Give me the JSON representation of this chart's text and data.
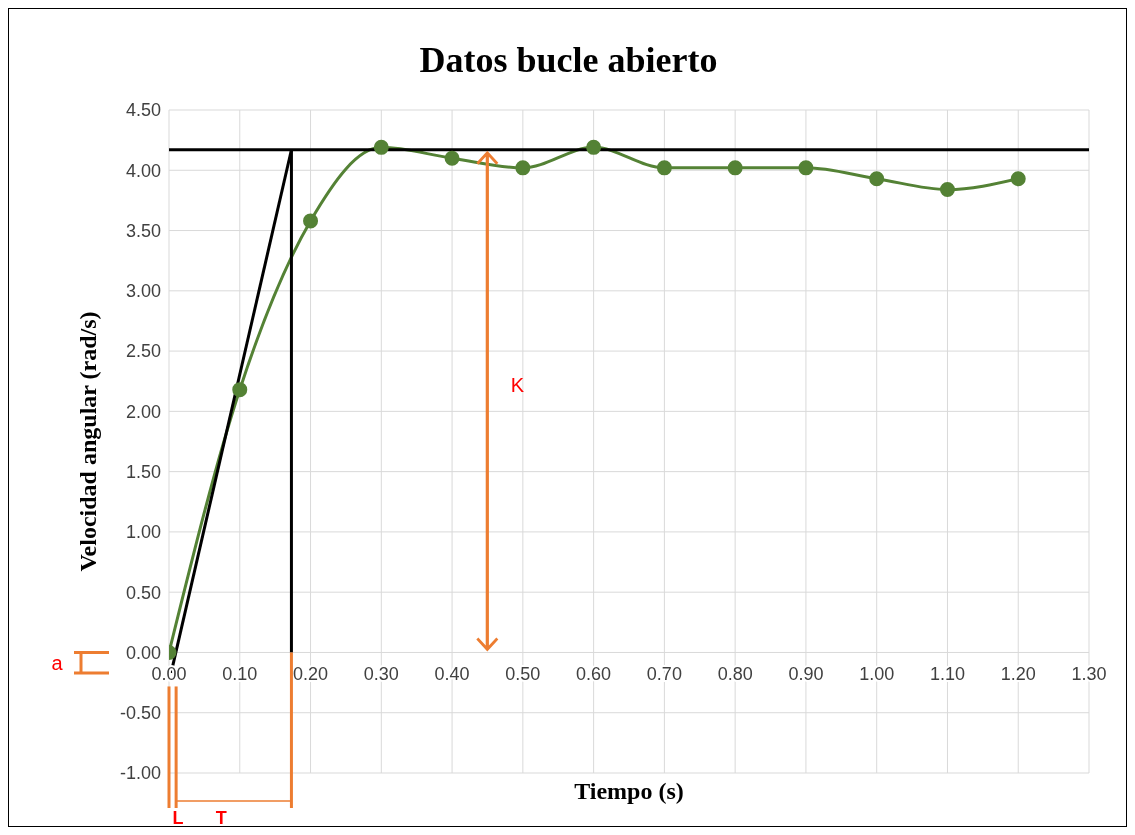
{
  "chart_data": {
    "type": "line",
    "title": "Datos bucle abierto",
    "xlabel": "Tiempo (s)",
    "ylabel": "Velocidad angular (rad/s)",
    "xlim": [
      0,
      1.3
    ],
    "xticks": [
      {
        "value": 0,
        "label": "0.00"
      },
      {
        "value": 0.1,
        "label": "0.10"
      },
      {
        "value": 0.2,
        "label": "0.20"
      },
      {
        "value": 0.3,
        "label": "0.30"
      },
      {
        "value": 0.4,
        "label": "0.40"
      },
      {
        "value": 0.5,
        "label": "0.50"
      },
      {
        "value": 0.6,
        "label": "0.60"
      },
      {
        "value": 0.7,
        "label": "0.70"
      },
      {
        "value": 0.8,
        "label": "0.80"
      },
      {
        "value": 0.9,
        "label": "0.90"
      },
      {
        "value": 1.0,
        "label": "1.00"
      },
      {
        "value": 1.1,
        "label": "1.10"
      },
      {
        "value": 1.2,
        "label": "1.20"
      },
      {
        "value": 1.3,
        "label": "1.30"
      }
    ],
    "ylim": [
      -1,
      4.5
    ],
    "yticks": [
      {
        "value": -1,
        "label": "-1.00"
      },
      {
        "value": -0.5,
        "label": "-0.50"
      },
      {
        "value": 0,
        "label": "0.00"
      },
      {
        "value": 0.5,
        "label": "0.50"
      },
      {
        "value": 1,
        "label": "1.00"
      },
      {
        "value": 1.5,
        "label": "1.50"
      },
      {
        "value": 2,
        "label": "2.00"
      },
      {
        "value": 2.5,
        "label": "2.50"
      },
      {
        "value": 3,
        "label": "3.00"
      },
      {
        "value": 3.5,
        "label": "3.50"
      },
      {
        "value": 4,
        "label": "4.00"
      },
      {
        "value": 4.5,
        "label": "4.50"
      }
    ],
    "grid": true,
    "marker": "circle",
    "line_style": "solid",
    "series": [
      {
        "type": "line",
        "color": "#548235",
        "x": [
          0,
          0.1,
          0.2,
          0.3,
          0.4,
          0.5,
          0.6,
          0.7,
          0.8,
          0.9,
          1.0,
          1.1,
          1.2
        ],
        "values": [
          0,
          2.18,
          3.58,
          4.19,
          4.1,
          4.02,
          4.19,
          4.02,
          4.02,
          4.02,
          3.93,
          3.84,
          3.93
        ]
      },
      {
        "type": "line",
        "color": "#000000",
        "marker": "none",
        "x": [
          0.003,
          0.173
        ],
        "values": [
          -0.17,
          4.17
        ]
      },
      {
        "type": "line",
        "color": "#000000",
        "marker": "none",
        "x": [
          0.173,
          0.173
        ],
        "values": [
          0,
          4.17
        ]
      }
    ],
    "ref_lines": [
      {
        "axis": "y",
        "value": 4.17,
        "color": "#000000"
      }
    ],
    "annotations": [
      "K",
      "a",
      "L",
      "T"
    ]
  }
}
